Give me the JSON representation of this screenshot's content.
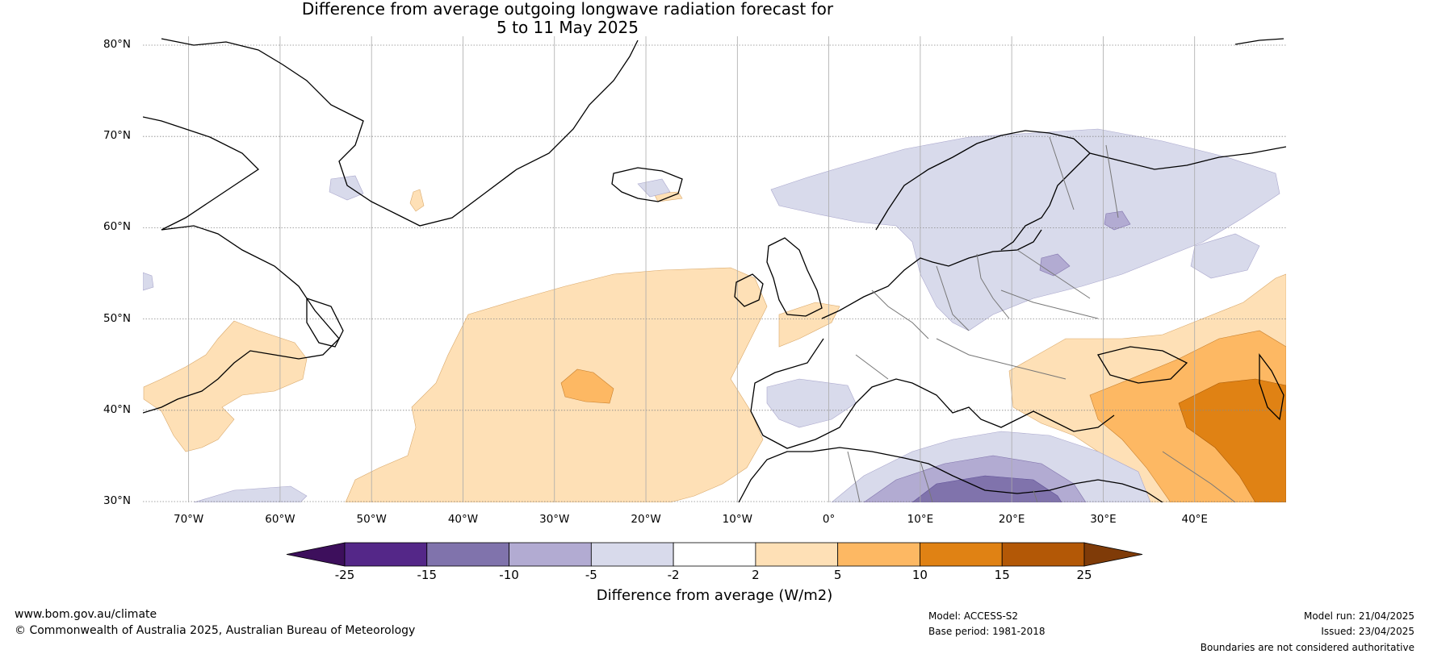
{
  "title": {
    "line1": "Difference from average outgoing longwave radiation forecast for",
    "line2": "5 to 11 May 2025"
  },
  "map": {
    "lat_labels": [
      "80°N",
      "70°N",
      "60°N",
      "50°N",
      "40°N",
      "30°N"
    ],
    "lon_labels": [
      "70°W",
      "60°W",
      "50°W",
      "40°W",
      "30°W",
      "20°W",
      "10°W",
      "0°",
      "10°E",
      "20°E",
      "30°E",
      "40°E"
    ],
    "extent": {
      "lon_min": -75,
      "lon_max": 50,
      "lat_min": 30,
      "lat_max": 81
    }
  },
  "colorbar": {
    "ticks": [
      "-25",
      "-15",
      "-10",
      "-5",
      "-2",
      "2",
      "5",
      "10",
      "15",
      "25"
    ],
    "colors": [
      "#3d0f5c",
      "#542788",
      "#8073ac",
      "#b2abd2",
      "#d8daeb",
      "#ffffff",
      "#fee0b6",
      "#fdb863",
      "#e08214",
      "#b35806",
      "#7f3b08"
    ],
    "label": "Difference from average (W/m2)"
  },
  "footer": {
    "url": "www.bom.gov.au/climate",
    "copyright": "© Commonwealth of Australia 2025, Australian Bureau of Meteorology",
    "model": "Model: ACCESS-S2",
    "base_period": "Base period: 1981-2018",
    "model_run": "Model run: 21/04/2025",
    "issued": "Issued: 23/04/2025",
    "disclaimer": "Boundaries are not considered authoritative"
  }
}
